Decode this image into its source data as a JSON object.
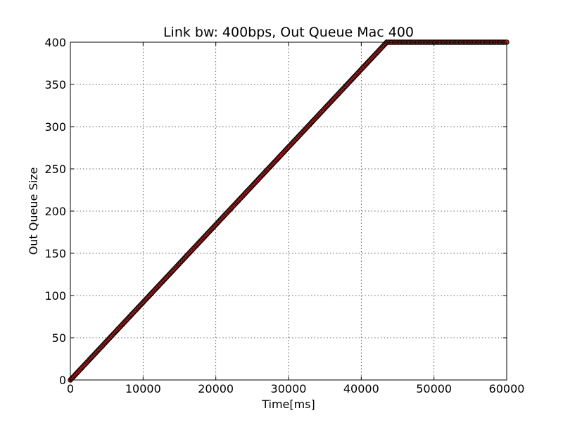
{
  "chart_data": {
    "type": "scatter",
    "title": "Link bw: 400bps, Out Queue Mac 400",
    "xlabel": "Time[ms]",
    "ylabel": "Out Queue Size",
    "xlim": [
      0,
      60000
    ],
    "ylim": [
      0,
      400
    ],
    "xticks": [
      0,
      10000,
      20000,
      30000,
      40000,
      50000,
      60000
    ],
    "yticks": [
      0,
      50,
      100,
      150,
      200,
      250,
      300,
      350,
      400
    ],
    "grid": true,
    "series": [
      {
        "marker_color": "#d62728",
        "marker_edge_color": "#000000",
        "x": [
          0,
          43500,
          60000
        ],
        "y": [
          0,
          400,
          400
        ]
      }
    ]
  }
}
